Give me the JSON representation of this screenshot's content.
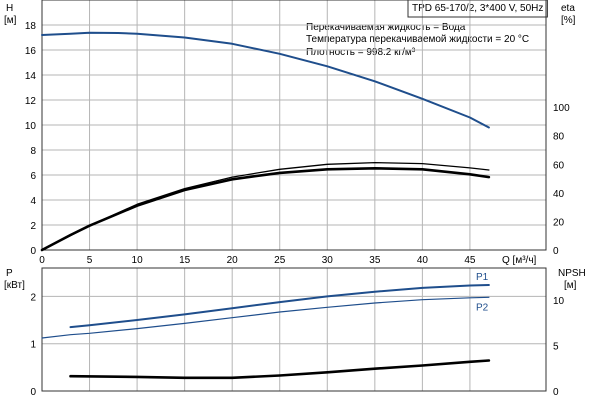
{
  "header": {
    "title": "TPD 65-170/2, 3*400 V, 50Hz",
    "info_lines": [
      "Перекачиваемая жидкость = Вода",
      "Температура перекачиваемой жидкости = 20 °C",
      "Плотность = 998.2 кг/м³"
    ]
  },
  "chart_data": [
    {
      "type": "line",
      "x_label": "Q [м³/ч]",
      "x_ticks": [
        0,
        5,
        10,
        15,
        20,
        25,
        30,
        35,
        40,
        45
      ],
      "xlim": [
        0,
        53
      ],
      "left_axis": {
        "title_line1": "H",
        "title_line2": "[м]",
        "ticks": [
          0,
          2,
          4,
          6,
          8,
          10,
          12,
          14,
          16,
          18
        ],
        "ylim": [
          0,
          20
        ]
      },
      "right_axis": {
        "title_line1": "eta",
        "title_line2": "[%]",
        "ticks": [
          0,
          20,
          40,
          60,
          80,
          100
        ],
        "ylim": [
          0,
          175
        ]
      },
      "series": [
        {
          "axis": "left",
          "color": "#1f4e8c",
          "width": 2,
          "points": [
            [
              0,
              17.2
            ],
            [
              3,
              17.3
            ],
            [
              5,
              17.38
            ],
            [
              8,
              17.36
            ],
            [
              10,
              17.3
            ],
            [
              15,
              17.0
            ],
            [
              20,
              16.5
            ],
            [
              25,
              15.7
            ],
            [
              30,
              14.7
            ],
            [
              35,
              13.5
            ],
            [
              40,
              12.1
            ],
            [
              45,
              10.6
            ],
            [
              47,
              9.8
            ]
          ]
        },
        {
          "axis": "right",
          "color": "#000000",
          "width": 1.3,
          "points": [
            [
              0,
              0
            ],
            [
              3,
              10
            ],
            [
              5,
              17
            ],
            [
              10,
              32
            ],
            [
              15,
              43
            ],
            [
              20,
              51
            ],
            [
              25,
              56.5
            ],
            [
              30,
              60
            ],
            [
              35,
              61.2
            ],
            [
              40,
              60.5
            ],
            [
              45,
              57.5
            ],
            [
              47,
              56
            ]
          ]
        },
        {
          "axis": "right",
          "color": "#000000",
          "width": 2.6,
          "points": [
            [
              0,
              0
            ],
            [
              3,
              10.5
            ],
            [
              5,
              17
            ],
            [
              10,
              31
            ],
            [
              15,
              42
            ],
            [
              20,
              49.5
            ],
            [
              25,
              54
            ],
            [
              30,
              56.5
            ],
            [
              35,
              57.2
            ],
            [
              40,
              56.5
            ],
            [
              45,
              53
            ],
            [
              47,
              51
            ]
          ]
        }
      ]
    },
    {
      "type": "line",
      "xlim": [
        0,
        53
      ],
      "left_axis": {
        "title_line1": "P",
        "title_line2": "[кВт]",
        "ticks": [
          0,
          1,
          2
        ],
        "ylim": [
          0,
          2.6
        ]
      },
      "right_axis": {
        "title_line1": "NPSH",
        "title_line2": "[м]",
        "ticks": [
          0,
          5,
          10
        ],
        "ylim": [
          0,
          13.5
        ]
      },
      "series": [
        {
          "name": "P1",
          "axis": "left",
          "color": "#1f4e8c",
          "width": 2,
          "points": [
            [
              3,
              1.35
            ],
            [
              5,
              1.39
            ],
            [
              10,
              1.5
            ],
            [
              15,
              1.62
            ],
            [
              20,
              1.75
            ],
            [
              25,
              1.88
            ],
            [
              30,
              2.0
            ],
            [
              35,
              2.1
            ],
            [
              40,
              2.18
            ],
            [
              45,
              2.23
            ],
            [
              47,
              2.24
            ]
          ]
        },
        {
          "name": "P2",
          "axis": "left",
          "color": "#1f4e8c",
          "width": 1.2,
          "points": [
            [
              0,
              1.12
            ],
            [
              3,
              1.19
            ],
            [
              5,
              1.22
            ],
            [
              10,
              1.32
            ],
            [
              15,
              1.43
            ],
            [
              20,
              1.55
            ],
            [
              25,
              1.67
            ],
            [
              30,
              1.77
            ],
            [
              35,
              1.86
            ],
            [
              40,
              1.93
            ],
            [
              45,
              1.97
            ],
            [
              47,
              1.98
            ]
          ]
        },
        {
          "axis": "right",
          "color": "#000000",
          "width": 2.6,
          "points": [
            [
              3,
              1.62
            ],
            [
              10,
              1.55
            ],
            [
              15,
              1.45
            ],
            [
              20,
              1.45
            ],
            [
              25,
              1.7
            ],
            [
              30,
              2.05
            ],
            [
              35,
              2.45
            ],
            [
              40,
              2.8
            ],
            [
              45,
              3.2
            ],
            [
              47,
              3.35
            ]
          ]
        }
      ]
    }
  ]
}
